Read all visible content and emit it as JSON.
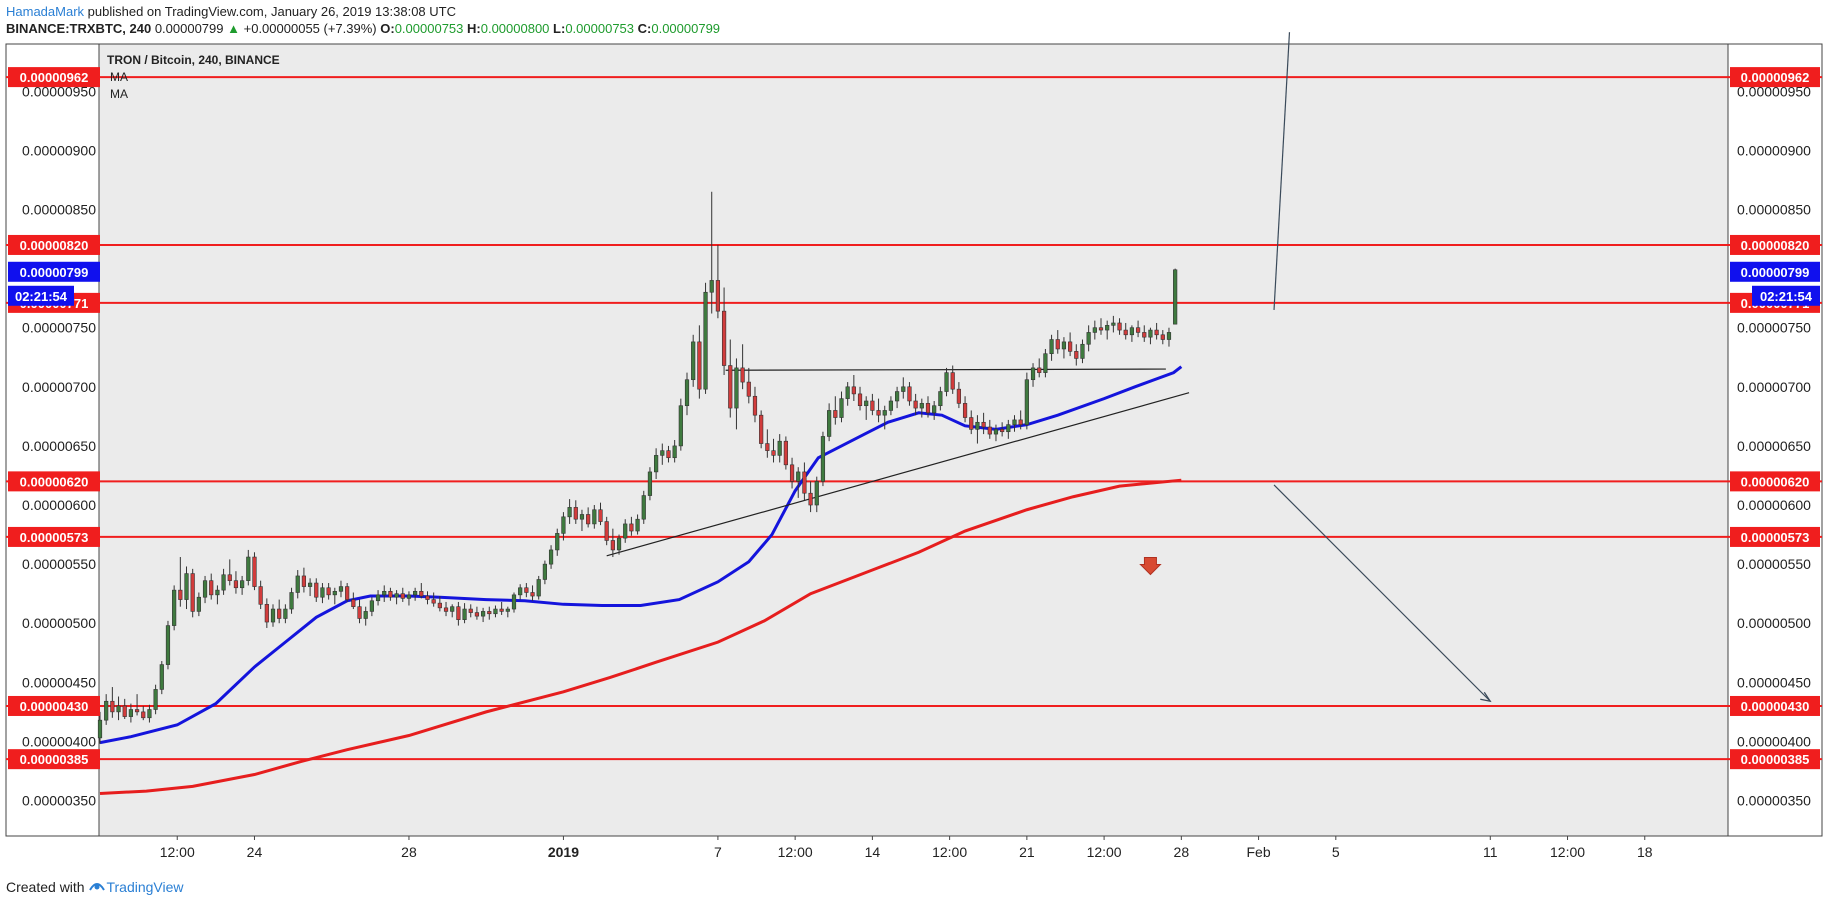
{
  "header": {
    "author": "HamadaMark",
    "published_text": "published on TradingView.com, January 26, 2019 13:38:08 UTC",
    "symbol": "BINANCE:TRXBTC, 240",
    "last": "0.00000799",
    "change": "+0.00000055 (+7.39%)",
    "open_label": "O:",
    "open": "0.00000753",
    "high_label": "H:",
    "high": "0.00000800",
    "low_label": "L:",
    "low": "0.00000753",
    "close_label": "C:",
    "close": "0.00000799"
  },
  "legend": {
    "title": "TRON / Bitcoin, 240, BINANCE",
    "ma1": "MA",
    "ma2": "MA"
  },
  "footer": {
    "created_with": "Created with",
    "brand": "TradingView"
  },
  "colors": {
    "up_candle": "#3f7a3f",
    "down_candle": "#d23c3c",
    "level_line": "#f01e1e",
    "ma_fast": "#1414dc",
    "ma_slow": "#e61e1e",
    "current_price_tag": "#1010ee",
    "plot_bg": "#ebebeb"
  },
  "chart_data": {
    "type": "candlestick",
    "symbol": "TRXBTC",
    "timeframe": "240",
    "ylim": [
      3.2e-06,
      9.9e-06
    ],
    "y_ticks": [
      "0.00000350",
      "0.00000400",
      "0.00000450",
      "0.00000500",
      "0.00000550",
      "0.00000600",
      "0.00000650",
      "0.00000700",
      "0.00000750",
      "0.00000800",
      "0.00000850",
      "0.00000900",
      "0.00000950"
    ],
    "x_ticks": [
      "12:00",
      "24",
      "28",
      "2019",
      "7",
      "12:00",
      "14",
      "12:00",
      "21",
      "12:00",
      "28",
      "Feb",
      "5",
      "11",
      "12:00",
      "18"
    ],
    "x_tick_pos": [
      0.5,
      1,
      2,
      3,
      4,
      4.5,
      5,
      5.5,
      6,
      6.5,
      7,
      7.5,
      8,
      9,
      9.5,
      10
    ],
    "xlim": [
      0,
      10.5
    ],
    "horizontal_levels": [
      "0.00000962",
      "0.00000820",
      "0.00000771",
      "0.00000620",
      "0.00000573",
      "0.00000430",
      "0.00000385"
    ],
    "current_price": "0.00000799",
    "countdown": "02:21:54",
    "ma_fast": {
      "name": "MA",
      "points": [
        [
          0,
          399
        ],
        [
          0.2,
          404
        ],
        [
          0.5,
          414
        ],
        [
          0.75,
          432
        ],
        [
          1.0,
          463
        ],
        [
          1.2,
          484
        ],
        [
          1.4,
          505
        ],
        [
          1.6,
          519
        ],
        [
          1.75,
          523
        ],
        [
          2.0,
          523
        ],
        [
          2.2,
          522
        ],
        [
          2.5,
          520
        ],
        [
          2.75,
          519
        ],
        [
          3.0,
          516
        ],
        [
          3.25,
          515
        ],
        [
          3.5,
          515
        ],
        [
          3.75,
          520
        ],
        [
          4.0,
          535
        ],
        [
          4.2,
          552
        ],
        [
          4.35,
          575
        ],
        [
          4.5,
          612
        ],
        [
          4.65,
          640
        ],
        [
          4.8,
          650
        ],
        [
          4.95,
          660
        ],
        [
          5.1,
          670
        ],
        [
          5.3,
          678
        ],
        [
          5.45,
          676
        ],
        [
          5.6,
          667
        ],
        [
          5.8,
          664
        ],
        [
          6.0,
          668
        ],
        [
          6.2,
          676
        ],
        [
          6.5,
          690
        ],
        [
          6.7,
          700
        ],
        [
          6.95,
          712
        ],
        [
          7.0,
          717
        ]
      ]
    },
    "ma_slow": {
      "name": "MA",
      "points": [
        [
          0,
          356
        ],
        [
          0.3,
          358
        ],
        [
          0.6,
          362
        ],
        [
          1.0,
          372
        ],
        [
          1.3,
          383
        ],
        [
          1.6,
          393
        ],
        [
          2.0,
          405
        ],
        [
          2.5,
          425
        ],
        [
          3.0,
          442
        ],
        [
          3.3,
          454
        ],
        [
          3.6,
          467
        ],
        [
          4.0,
          484
        ],
        [
          4.3,
          502
        ],
        [
          4.6,
          525
        ],
        [
          5.0,
          545
        ],
        [
          5.3,
          560
        ],
        [
          5.6,
          578
        ],
        [
          6.0,
          596
        ],
        [
          6.3,
          607
        ],
        [
          6.6,
          616
        ],
        [
          7.0,
          621
        ]
      ]
    },
    "candles": [
      [
        0.0,
        403,
        425,
        398,
        418
      ],
      [
        0.04,
        418,
        440,
        414,
        434
      ],
      [
        0.08,
        434,
        446,
        420,
        425
      ],
      [
        0.12,
        425,
        438,
        418,
        430
      ],
      [
        0.16,
        430,
        436,
        419,
        421
      ],
      [
        0.2,
        421,
        432,
        416,
        427
      ],
      [
        0.24,
        427,
        440,
        422,
        425
      ],
      [
        0.28,
        425,
        430,
        418,
        420
      ],
      [
        0.32,
        420,
        431,
        416,
        427
      ],
      [
        0.36,
        427,
        448,
        423,
        444
      ],
      [
        0.4,
        444,
        468,
        440,
        465
      ],
      [
        0.44,
        465,
        502,
        461,
        498
      ],
      [
        0.48,
        498,
        532,
        494,
        528
      ],
      [
        0.52,
        528,
        556,
        514,
        520
      ],
      [
        0.56,
        520,
        548,
        512,
        542
      ],
      [
        0.6,
        542,
        546,
        505,
        510
      ],
      [
        0.64,
        510,
        526,
        506,
        522
      ],
      [
        0.68,
        522,
        540,
        517,
        536
      ],
      [
        0.72,
        536,
        542,
        520,
        524
      ],
      [
        0.76,
        524,
        532,
        516,
        528
      ],
      [
        0.8,
        528,
        546,
        524,
        541
      ],
      [
        0.84,
        541,
        554,
        532,
        536
      ],
      [
        0.88,
        536,
        544,
        525,
        530
      ],
      [
        0.92,
        530,
        540,
        524,
        536
      ],
      [
        0.96,
        536,
        562,
        532,
        556
      ],
      [
        1.0,
        556,
        560,
        528,
        531
      ],
      [
        1.04,
        531,
        536,
        512,
        516
      ],
      [
        1.08,
        516,
        521,
        496,
        501
      ],
      [
        1.12,
        501,
        516,
        497,
        512
      ],
      [
        1.16,
        512,
        520,
        500,
        504
      ],
      [
        1.2,
        504,
        516,
        500,
        512
      ],
      [
        1.24,
        512,
        530,
        508,
        526
      ],
      [
        1.28,
        526,
        545,
        521,
        540
      ],
      [
        1.32,
        540,
        547,
        526,
        531
      ],
      [
        1.36,
        531,
        538,
        523,
        534
      ],
      [
        1.4,
        534,
        538,
        518,
        522
      ],
      [
        1.44,
        522,
        534,
        517,
        530
      ],
      [
        1.48,
        530,
        534,
        520,
        524
      ],
      [
        1.52,
        524,
        530,
        516,
        527
      ],
      [
        1.56,
        527,
        536,
        522,
        531
      ],
      [
        1.6,
        531,
        534,
        518,
        520
      ],
      [
        1.64,
        520,
        526,
        512,
        514
      ],
      [
        1.68,
        514,
        520,
        500,
        504
      ],
      [
        1.72,
        504,
        514,
        498,
        510
      ],
      [
        1.76,
        510,
        522,
        506,
        519
      ],
      [
        1.8,
        519,
        528,
        515,
        524
      ],
      [
        1.84,
        524,
        532,
        518,
        527
      ],
      [
        1.88,
        527,
        530,
        519,
        522
      ],
      [
        1.92,
        522,
        528,
        516,
        525
      ],
      [
        1.96,
        525,
        530,
        518,
        521
      ],
      [
        2.0,
        521,
        527,
        515,
        524
      ],
      [
        2.04,
        524,
        530,
        519,
        527
      ],
      [
        2.08,
        527,
        534,
        521,
        523
      ],
      [
        2.12,
        523,
        527,
        516,
        520
      ],
      [
        2.16,
        520,
        526,
        514,
        517
      ],
      [
        2.2,
        517,
        523,
        510,
        513
      ],
      [
        2.24,
        513,
        518,
        506,
        510
      ],
      [
        2.28,
        510,
        516,
        505,
        514
      ],
      [
        2.32,
        514,
        518,
        498,
        503
      ],
      [
        2.36,
        503,
        517,
        500,
        512
      ],
      [
        2.4,
        512,
        516,
        505,
        509
      ],
      [
        2.44,
        509,
        514,
        503,
        506
      ],
      [
        2.48,
        506,
        513,
        501,
        510
      ],
      [
        2.52,
        510,
        514,
        503,
        508
      ],
      [
        2.56,
        508,
        515,
        505,
        512
      ],
      [
        2.6,
        512,
        518,
        507,
        510
      ],
      [
        2.64,
        510,
        514,
        505,
        512
      ],
      [
        2.68,
        512,
        526,
        509,
        524
      ],
      [
        2.72,
        524,
        533,
        520,
        530
      ],
      [
        2.76,
        530,
        534,
        522,
        526
      ],
      [
        2.8,
        526,
        532,
        519,
        523
      ],
      [
        2.84,
        523,
        540,
        520,
        537
      ],
      [
        2.88,
        537,
        553,
        533,
        550
      ],
      [
        2.92,
        550,
        566,
        546,
        562
      ],
      [
        2.96,
        562,
        580,
        557,
        576
      ],
      [
        3.0,
        576,
        594,
        570,
        590
      ],
      [
        3.04,
        590,
        605,
        584,
        598
      ],
      [
        3.08,
        598,
        604,
        584,
        588
      ],
      [
        3.12,
        588,
        596,
        578,
        592
      ],
      [
        3.16,
        592,
        598,
        581,
        584
      ],
      [
        3.2,
        584,
        600,
        580,
        596
      ],
      [
        3.24,
        596,
        602,
        583,
        586
      ],
      [
        3.28,
        586,
        590,
        566,
        570
      ],
      [
        3.32,
        570,
        580,
        556,
        562
      ],
      [
        3.36,
        562,
        575,
        558,
        572
      ],
      [
        3.4,
        572,
        588,
        568,
        584
      ],
      [
        3.44,
        584,
        590,
        574,
        578
      ],
      [
        3.48,
        578,
        592,
        575,
        588
      ],
      [
        3.52,
        588,
        612,
        584,
        608
      ],
      [
        3.56,
        608,
        632,
        604,
        628
      ],
      [
        3.6,
        628,
        648,
        622,
        642
      ],
      [
        3.64,
        642,
        652,
        634,
        646
      ],
      [
        3.68,
        646,
        650,
        636,
        640
      ],
      [
        3.72,
        640,
        655,
        636,
        650
      ],
      [
        3.76,
        650,
        690,
        646,
        684
      ],
      [
        3.8,
        684,
        712,
        676,
        706
      ],
      [
        3.84,
        706,
        744,
        700,
        738
      ],
      [
        3.88,
        738,
        752,
        690,
        698
      ],
      [
        3.92,
        698,
        788,
        694,
        780
      ],
      [
        3.96,
        780,
        865,
        762,
        790
      ],
      [
        4.0,
        790,
        820,
        758,
        764
      ],
      [
        4.04,
        764,
        784,
        710,
        718
      ],
      [
        4.08,
        718,
        740,
        674,
        682
      ],
      [
        4.12,
        682,
        724,
        664,
        716
      ],
      [
        4.16,
        716,
        736,
        698,
        704
      ],
      [
        4.2,
        704,
        716,
        686,
        692
      ],
      [
        4.24,
        692,
        700,
        670,
        676
      ],
      [
        4.28,
        676,
        680,
        648,
        652
      ],
      [
        4.32,
        652,
        664,
        640,
        646
      ],
      [
        4.36,
        646,
        656,
        636,
        642
      ],
      [
        4.4,
        642,
        660,
        636,
        654
      ],
      [
        4.44,
        654,
        658,
        630,
        634
      ],
      [
        4.48,
        634,
        640,
        614,
        620
      ],
      [
        4.52,
        620,
        632,
        606,
        628
      ],
      [
        4.56,
        628,
        636,
        604,
        610
      ],
      [
        4.6,
        610,
        620,
        594,
        600
      ],
      [
        4.64,
        600,
        624,
        594,
        620
      ],
      [
        4.68,
        620,
        662,
        616,
        658
      ],
      [
        4.72,
        658,
        686,
        654,
        680
      ],
      [
        4.76,
        680,
        692,
        668,
        674
      ],
      [
        4.8,
        674,
        696,
        670,
        690
      ],
      [
        4.84,
        690,
        704,
        684,
        700
      ],
      [
        4.88,
        700,
        710,
        688,
        694
      ],
      [
        4.92,
        694,
        700,
        680,
        684
      ],
      [
        4.96,
        684,
        692,
        672,
        688
      ],
      [
        5.0,
        688,
        694,
        676,
        680
      ],
      [
        5.04,
        680,
        690,
        670,
        676
      ],
      [
        5.08,
        676,
        684,
        664,
        680
      ],
      [
        5.12,
        680,
        692,
        676,
        688
      ],
      [
        5.16,
        688,
        700,
        682,
        696
      ],
      [
        5.2,
        696,
        708,
        690,
        700
      ],
      [
        5.24,
        700,
        704,
        684,
        688
      ],
      [
        5.28,
        688,
        694,
        676,
        682
      ],
      [
        5.32,
        682,
        690,
        674,
        686
      ],
      [
        5.36,
        686,
        692,
        674,
        678
      ],
      [
        5.4,
        678,
        688,
        672,
        684
      ],
      [
        5.44,
        684,
        700,
        680,
        696
      ],
      [
        5.48,
        696,
        716,
        692,
        712
      ],
      [
        5.52,
        712,
        718,
        694,
        698
      ],
      [
        5.56,
        698,
        704,
        682,
        686
      ],
      [
        5.6,
        686,
        692,
        670,
        674
      ],
      [
        5.64,
        674,
        680,
        660,
        664
      ],
      [
        5.68,
        664,
        676,
        652,
        670
      ],
      [
        5.72,
        670,
        678,
        660,
        666
      ],
      [
        5.76,
        666,
        672,
        656,
        660
      ],
      [
        5.8,
        660,
        668,
        654,
        664
      ],
      [
        5.84,
        664,
        670,
        658,
        662
      ],
      [
        5.88,
        662,
        672,
        656,
        668
      ],
      [
        5.92,
        668,
        676,
        662,
        672
      ],
      [
        5.96,
        672,
        680,
        664,
        668
      ],
      [
        6.0,
        668,
        712,
        664,
        706
      ],
      [
        6.04,
        706,
        720,
        700,
        716
      ],
      [
        6.08,
        716,
        724,
        708,
        712
      ],
      [
        6.12,
        712,
        732,
        708,
        728
      ],
      [
        6.16,
        728,
        744,
        722,
        740
      ],
      [
        6.2,
        740,
        748,
        728,
        732
      ],
      [
        6.24,
        732,
        742,
        724,
        738
      ],
      [
        6.28,
        738,
        746,
        726,
        730
      ],
      [
        6.32,
        730,
        736,
        718,
        724
      ],
      [
        6.36,
        724,
        740,
        720,
        736
      ],
      [
        6.4,
        736,
        752,
        730,
        746
      ],
      [
        6.44,
        746,
        756,
        740,
        750
      ],
      [
        6.48,
        750,
        758,
        744,
        748
      ],
      [
        6.52,
        748,
        756,
        740,
        752
      ],
      [
        6.56,
        752,
        760,
        746,
        754
      ],
      [
        6.6,
        754,
        758,
        744,
        748
      ],
      [
        6.64,
        748,
        754,
        740,
        744
      ],
      [
        6.68,
        744,
        752,
        738,
        750
      ],
      [
        6.72,
        750,
        756,
        742,
        746
      ],
      [
        6.76,
        746,
        752,
        738,
        742
      ],
      [
        6.8,
        742,
        750,
        736,
        748
      ],
      [
        6.84,
        748,
        754,
        740,
        744
      ],
      [
        6.88,
        744,
        748,
        736,
        740
      ],
      [
        6.92,
        740,
        750,
        734,
        746
      ],
      [
        6.96,
        753,
        800,
        753,
        799
      ]
    ],
    "drawings": {
      "resistance_line": [
        [
          4.05,
          714
        ],
        [
          6.9,
          715
        ]
      ],
      "trendline": [
        [
          3.28,
          557
        ],
        [
          7.05,
          695
        ]
      ],
      "up_line": [
        [
          7.6,
          765
        ],
        [
          7.7,
          1000
        ]
      ],
      "down_arrow_line": [
        [
          7.6,
          617
        ],
        [
          9.0,
          434
        ]
      ],
      "short_marker": [
        6.8,
        548
      ]
    }
  }
}
